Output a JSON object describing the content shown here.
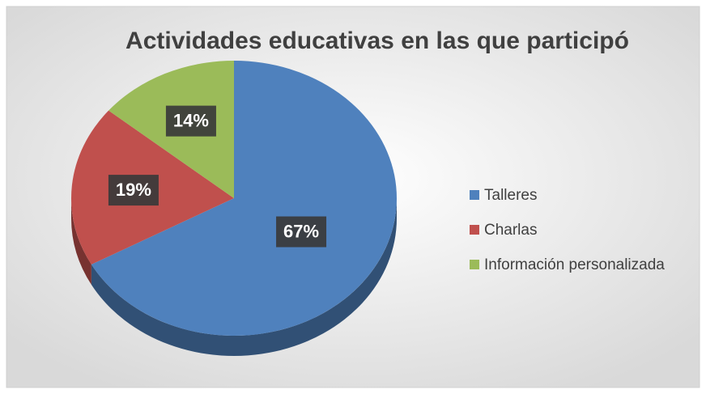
{
  "chart_data": {
    "type": "pie",
    "title": "Actividades educativas en las que participó",
    "categories": [
      "Talleres",
      "Charlas",
      "Información personalizada"
    ],
    "values": [
      67,
      19,
      14
    ],
    "value_labels": [
      "67%",
      "19%",
      "14%"
    ],
    "colors": [
      "#4f81bd",
      "#c0504d",
      "#9bbb59"
    ],
    "legend": "right"
  }
}
